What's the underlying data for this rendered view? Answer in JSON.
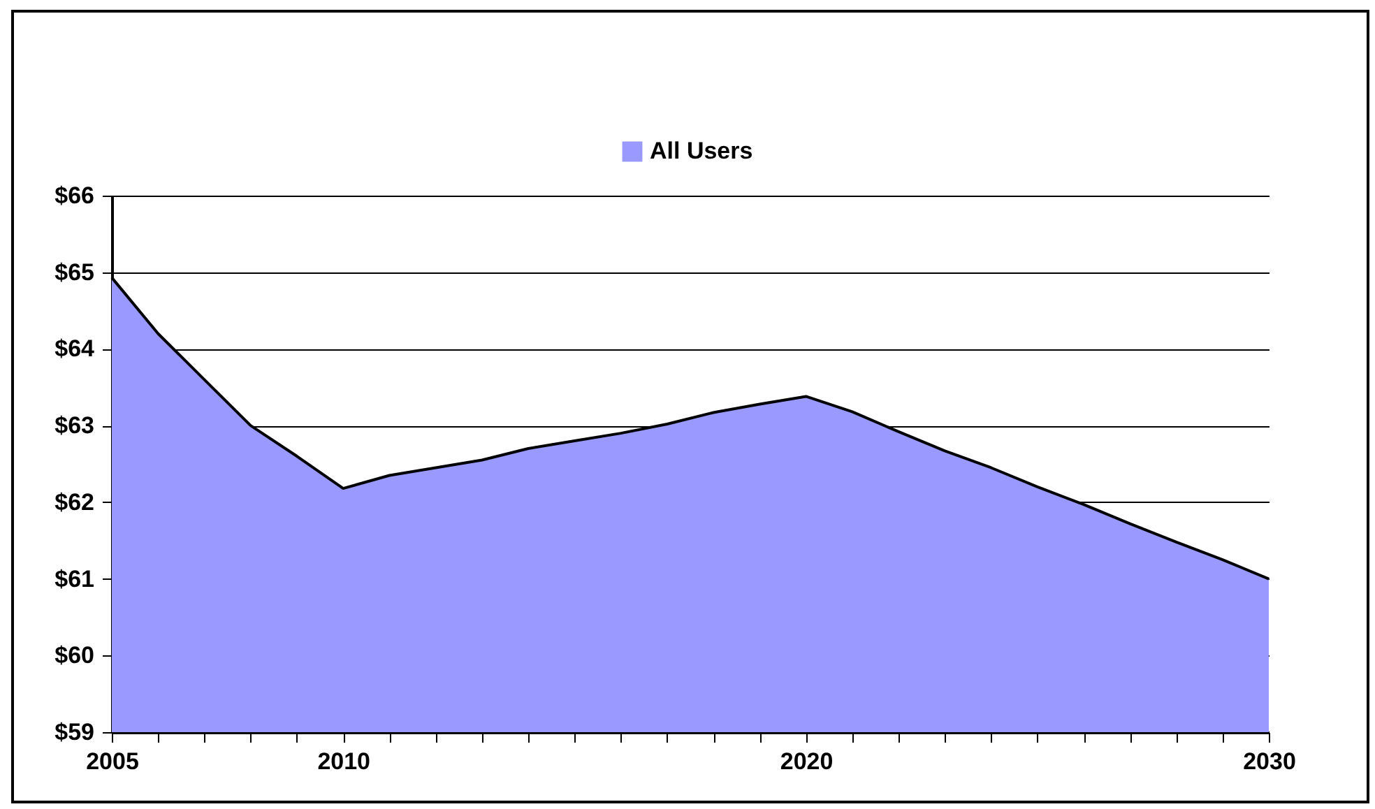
{
  "chart_data": {
    "type": "area",
    "legend": "top",
    "grid": "y",
    "x": [
      2005,
      2006,
      2007,
      2008,
      2009,
      2010,
      2011,
      2012,
      2013,
      2014,
      2015,
      2016,
      2017,
      2018,
      2019,
      2020,
      2021,
      2022,
      2023,
      2024,
      2025,
      2026,
      2027,
      2028,
      2029,
      2030
    ],
    "series": [
      {
        "name": "All Users",
        "color": "#9999ff",
        "values": [
          64.93,
          64.2,
          63.6,
          63.0,
          62.6,
          62.18,
          62.35,
          62.45,
          62.55,
          62.7,
          62.8,
          62.9,
          63.02,
          63.17,
          63.28,
          63.38,
          63.18,
          62.92,
          62.67,
          62.45,
          62.2,
          61.97,
          61.72,
          61.48,
          61.25,
          61.0
        ]
      }
    ],
    "xlim": [
      2005,
      2030
    ],
    "xticks": [
      2005,
      {
        "value": 2006,
        "label": null
      },
      {
        "value": 2007,
        "label": null
      },
      {
        "value": 2008,
        "label": null
      },
      {
        "value": 2009,
        "label": null
      },
      2010,
      {
        "value": 2011,
        "label": null
      },
      {
        "value": 2012,
        "label": null
      },
      {
        "value": 2013,
        "label": null
      },
      {
        "value": 2014,
        "label": null
      },
      {
        "value": 2015,
        "label": null
      },
      {
        "value": 2016,
        "label": null
      },
      {
        "value": 2017,
        "label": null
      },
      {
        "value": 2018,
        "label": null
      },
      {
        "value": 2019,
        "label": null
      },
      2020,
      {
        "value": 2021,
        "label": null
      },
      {
        "value": 2022,
        "label": null
      },
      {
        "value": 2023,
        "label": null
      },
      {
        "value": 2024,
        "label": null
      },
      {
        "value": 2025,
        "label": null
      },
      {
        "value": 2026,
        "label": null
      },
      {
        "value": 2027,
        "label": null
      },
      {
        "value": 2028,
        "label": null
      },
      {
        "value": 2029,
        "label": null
      },
      2030
    ],
    "ylim": [
      59,
      66
    ],
    "yticks": [
      {
        "value": 59,
        "label": "$59"
      },
      {
        "value": 60,
        "label": "$60"
      },
      {
        "value": 61,
        "label": "$61"
      },
      {
        "value": 62,
        "label": "$62"
      },
      {
        "value": 63,
        "label": "$63"
      },
      {
        "value": 64,
        "label": "$64"
      },
      {
        "value": 65,
        "label": "$65"
      },
      {
        "value": 66,
        "label": "$66"
      }
    ]
  }
}
